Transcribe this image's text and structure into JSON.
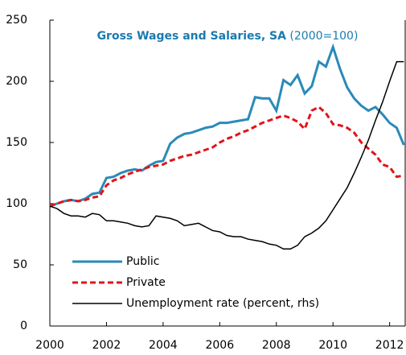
{
  "chart_data": {
    "type": "line",
    "title": "Gross Wages and Salaries, SA",
    "subtitle": "(2000=100)",
    "x": [
      2000,
      2000.25,
      2000.5,
      2000.75,
      2001,
      2001.25,
      2001.5,
      2001.75,
      2002,
      2002.25,
      2002.5,
      2002.75,
      2003,
      2003.25,
      2003.5,
      2003.75,
      2004,
      2004.25,
      2004.5,
      2004.75,
      2005,
      2005.25,
      2005.5,
      2005.75,
      2006,
      2006.25,
      2006.5,
      2006.75,
      2007,
      2007.25,
      2007.5,
      2007.75,
      2008,
      2008.25,
      2008.5,
      2008.75,
      2009,
      2009.25,
      2009.5,
      2009.75,
      2010,
      2010.25,
      2010.5,
      2010.75,
      2011,
      2011.25,
      2011.5,
      2011.75,
      2012,
      2012.25,
      2012.5
    ],
    "series": [
      {
        "name": "Public",
        "color": "#2a8ab8",
        "dash": false,
        "values": [
          98,
          100,
          102,
          103,
          102,
          104,
          108,
          109,
          121,
          122,
          125,
          127,
          128,
          127,
          131,
          134,
          135,
          149,
          154,
          157,
          158,
          160,
          162,
          163,
          166,
          166,
          167,
          168,
          169,
          187,
          186,
          186,
          176,
          201,
          197,
          205,
          190,
          196,
          216,
          212,
          228,
          210,
          195,
          186,
          180,
          176,
          179,
          173,
          166,
          162,
          148
        ]
      },
      {
        "name": "Private",
        "color": "#e0151b",
        "dash": true,
        "values": [
          98,
          100,
          102,
          103,
          102,
          103,
          105,
          106,
          115,
          119,
          121,
          124,
          126,
          128,
          130,
          131,
          132,
          135,
          137,
          139,
          140,
          142,
          144,
          146,
          150,
          153,
          155,
          158,
          160,
          163,
          166,
          168,
          170,
          172,
          170,
          167,
          161,
          176,
          179,
          174,
          165,
          164,
          162,
          158,
          150,
          145,
          140,
          132,
          130,
          122,
          123
        ]
      },
      {
        "name": "Unemployment rate (percent, rhs)",
        "color": "#000000",
        "dash": false,
        "values": [
          98,
          96,
          92,
          90,
          90,
          89,
          92,
          91,
          86,
          86,
          85,
          84,
          82,
          81,
          82,
          90,
          89,
          88,
          86,
          82,
          83,
          84,
          81,
          78,
          77,
          74,
          73,
          73,
          71,
          70,
          69,
          67,
          66,
          63,
          63,
          66,
          73,
          76,
          80,
          86,
          95,
          104,
          113,
          125,
          138,
          152,
          168,
          183,
          200,
          216,
          216
        ]
      }
    ],
    "xlim": [
      2000,
      2012.55
    ],
    "xticks": [
      2000,
      2002,
      2004,
      2006,
      2008,
      2010,
      2012
    ],
    "ylim": [
      0,
      250
    ],
    "yticks": [
      0,
      50,
      100,
      150,
      200,
      250
    ],
    "legend": "lower left"
  }
}
